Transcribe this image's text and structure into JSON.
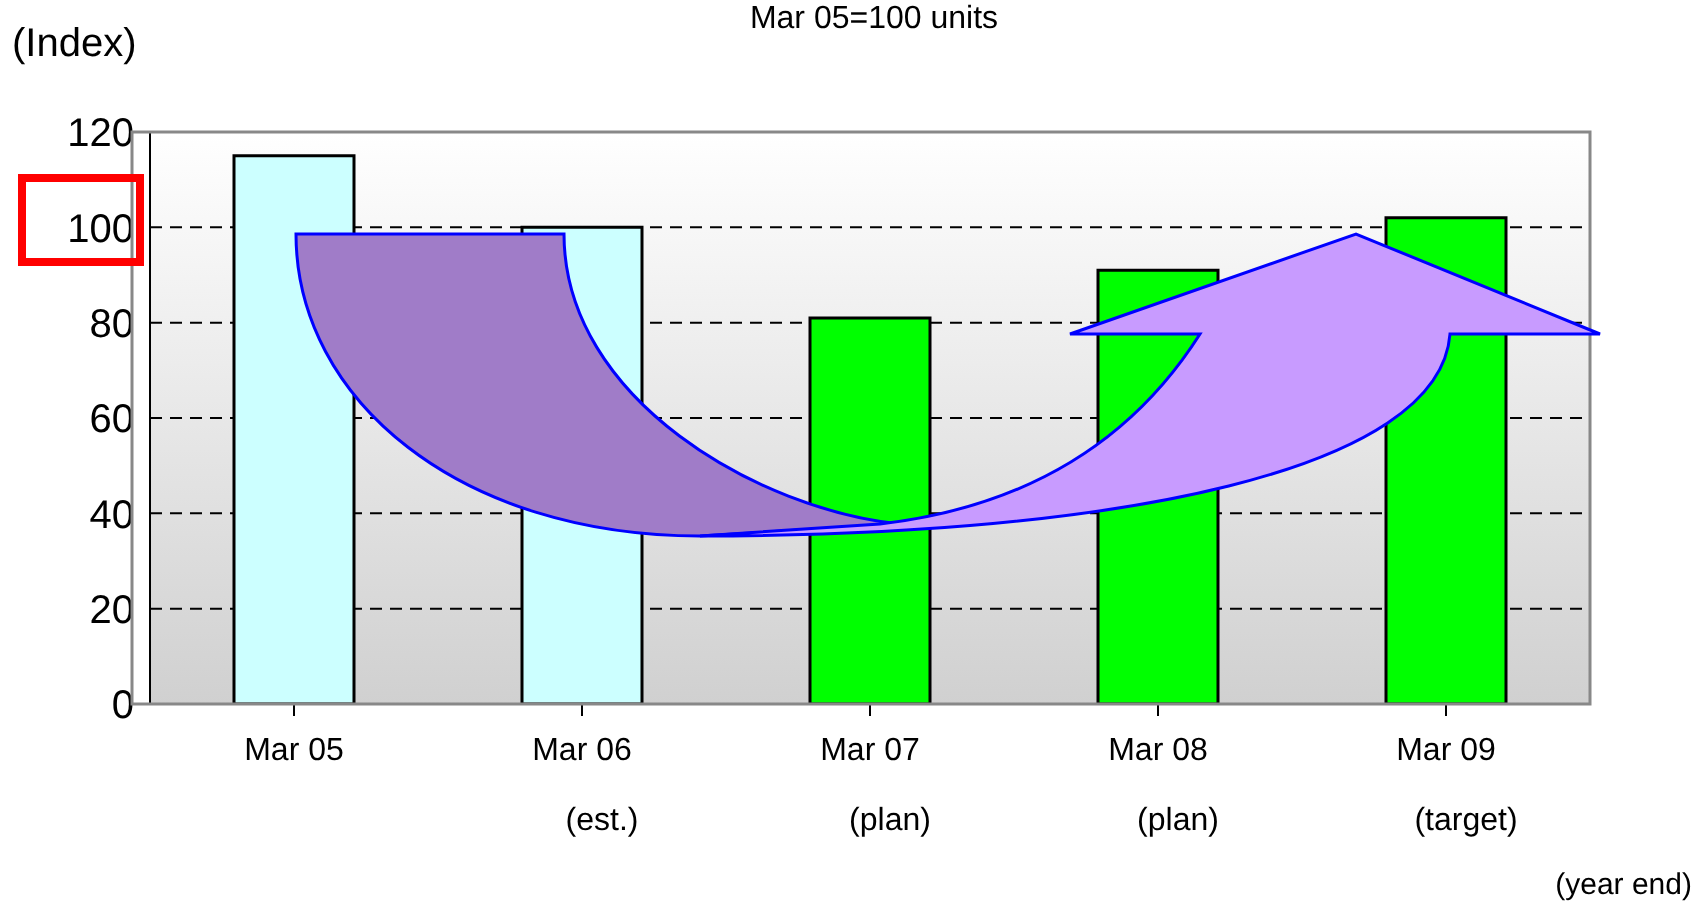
{
  "chart_data": {
    "type": "bar",
    "title": "Mar 05=100 units",
    "ylabel": "(Index)",
    "categories": [
      "Mar 05",
      "Mar 06\n(est.)",
      "Mar 07\n(plan)",
      "Mar 08\n(plan)",
      "Mar 09\n(target)"
    ],
    "values": [
      115,
      100,
      81,
      91,
      102
    ],
    "colors": [
      "#ccffff",
      "#ccffff",
      "#00ff00",
      "#00ff00",
      "#00ff00"
    ],
    "ylim": [
      0,
      120
    ],
    "yticks": [
      0,
      20,
      40,
      60,
      80,
      100,
      120
    ],
    "grid": "y",
    "annotations": [
      "(year end)"
    ]
  }
}
